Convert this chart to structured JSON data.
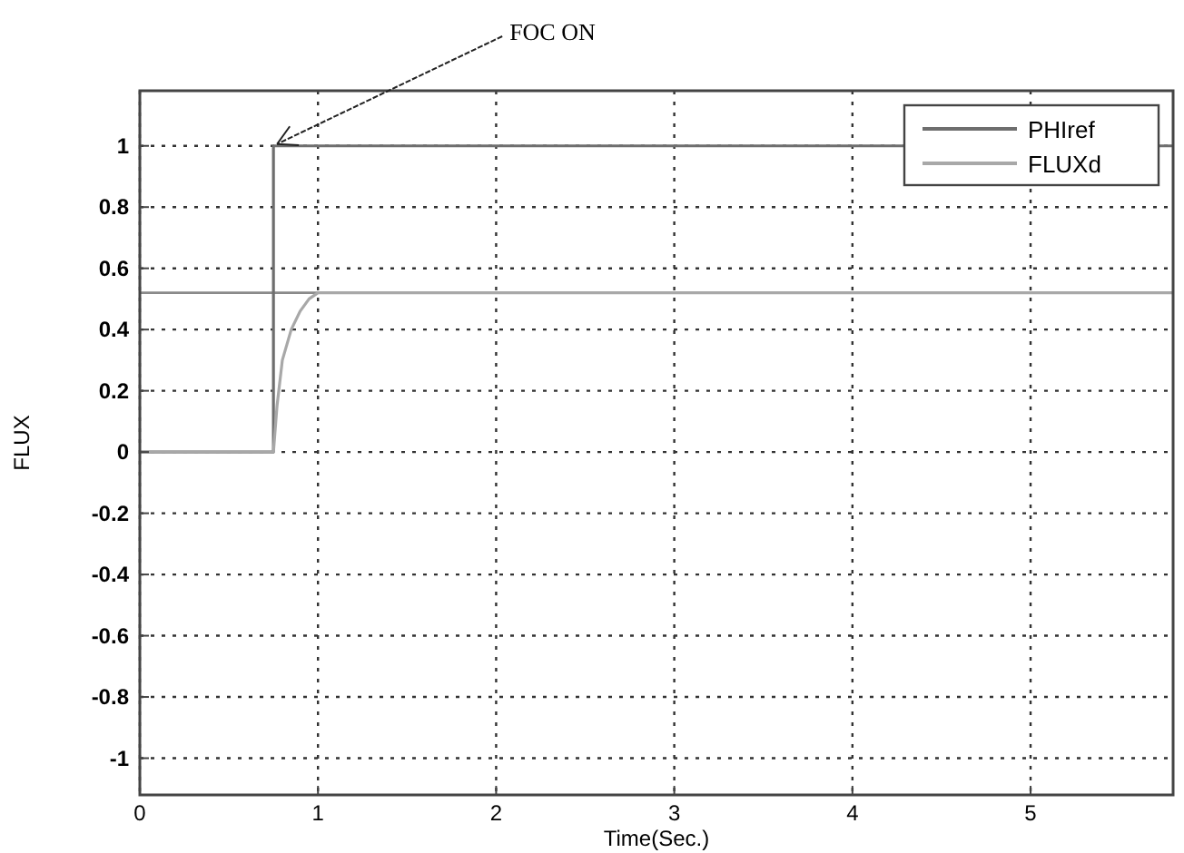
{
  "chart_data": {
    "type": "line",
    "xlabel": "Time(Sec.)",
    "ylabel": "FLUX",
    "xlim": [
      0,
      5.8
    ],
    "ylim": [
      -1.12,
      1.18
    ],
    "xticks": [
      0,
      1,
      2,
      3,
      4,
      5
    ],
    "yticks": [
      -1,
      -0.8,
      -0.6,
      -0.4,
      -0.2,
      0,
      0.2,
      0.4,
      0.6,
      0.8,
      1
    ],
    "grid": true,
    "legend": "top right",
    "line_style": "solid",
    "series": [
      {
        "name": "PHIref",
        "color": "#6e6e6e",
        "x": [
          0,
          0.75,
          0.75,
          5.8
        ],
        "values": [
          0,
          0,
          1,
          1
        ]
      },
      {
        "name": "FLUXd",
        "color": "#a8a8a8",
        "x": [
          0,
          0.75,
          0.77,
          0.8,
          0.85,
          0.9,
          0.95,
          1.0,
          5.8
        ],
        "values": [
          0,
          0,
          0.15,
          0.3,
          0.4,
          0.46,
          0.5,
          0.52,
          0.52
        ]
      }
    ],
    "ref_lines": [
      {
        "axis": "y",
        "value": 0.52,
        "label": null,
        "color": "#8a8a8a"
      }
    ],
    "annotations": [
      {
        "text": "FOC ON",
        "x": 0.75,
        "y": 1
      }
    ]
  }
}
